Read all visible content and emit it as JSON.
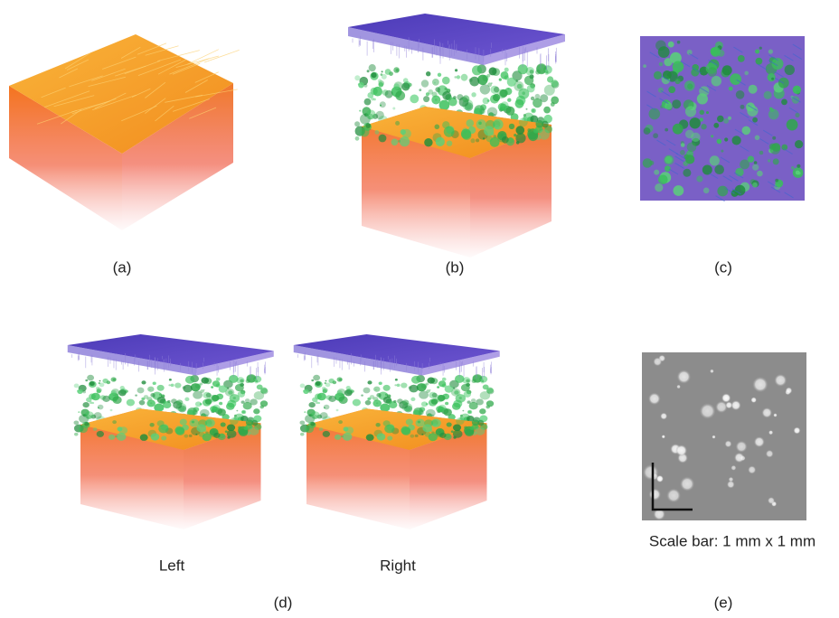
{
  "panels": [
    {
      "label": "(a)"
    },
    {
      "label": "(b)"
    },
    {
      "label": "(c)"
    },
    {
      "label": "(d)",
      "views": [
        "Left",
        "Right"
      ]
    },
    {
      "label": "(e)",
      "caption": "Scale bar: 1 mm x 1 mm"
    }
  ]
}
